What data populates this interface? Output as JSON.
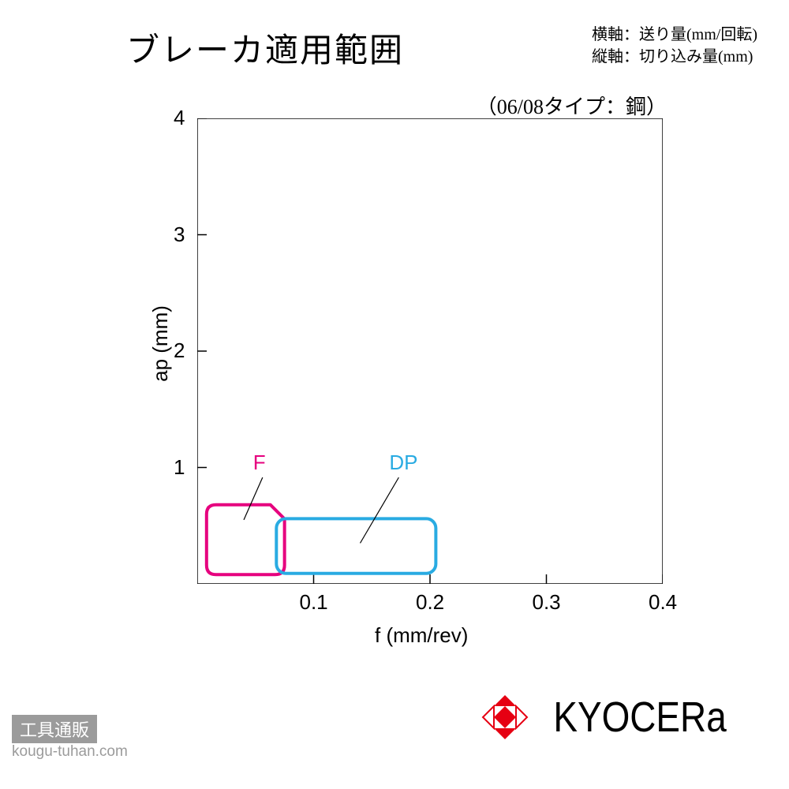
{
  "title": "ブレーカ適用範囲",
  "axis_desc_x": "横軸：送り量(mm/回転)",
  "axis_desc_y": "縦軸：切り込み量(mm)",
  "subtitle": "（06/08タイプ：鋼）",
  "chart": {
    "type": "region",
    "x_label": "f (mm/rev)",
    "y_label": "ap (mm)",
    "xlim": [
      0,
      0.4
    ],
    "ylim": [
      0,
      4
    ],
    "x_ticks": [
      0.1,
      0.2,
      0.3,
      0.4
    ],
    "x_tick_labels": [
      "0.1",
      "0.2",
      "0.3",
      "0.4"
    ],
    "y_ticks": [
      1,
      2,
      3,
      4
    ],
    "y_tick_labels": [
      "1",
      "2",
      "3",
      "4"
    ],
    "plot_border_color": "#000000",
    "plot_border_width": 1.5,
    "inner_tick_length": 12,
    "background_color": "#ffffff",
    "label_fontsize": 26,
    "tick_fontsize": 26,
    "regions": [
      {
        "name": "F",
        "label": "F",
        "color": "#e6007e",
        "stroke_width": 4,
        "x_range": [
          0.008,
          0.075
        ],
        "y_range": [
          0.08,
          0.68
        ],
        "corner_radius": 12,
        "label_pos_x": 0.048,
        "label_pos_y": 1.05,
        "leader_to_x": 0.04,
        "leader_to_y": 0.55
      },
      {
        "name": "DP",
        "label": "DP",
        "color": "#29abe2",
        "stroke_width": 4,
        "x_range": [
          0.068,
          0.205
        ],
        "y_range": [
          0.09,
          0.56
        ],
        "corner_radius": 12,
        "label_pos_x": 0.165,
        "label_pos_y": 1.05,
        "leader_to_x": 0.14,
        "leader_to_y": 0.35
      }
    ]
  },
  "brand": {
    "name": "KYOCERa",
    "logo_color": "#e60012"
  },
  "watermark": {
    "label": "工具通販",
    "url": "kougu-tuhan.com",
    "bar_bg": "#9b9b9b",
    "text_color": "#9b9b9b"
  }
}
